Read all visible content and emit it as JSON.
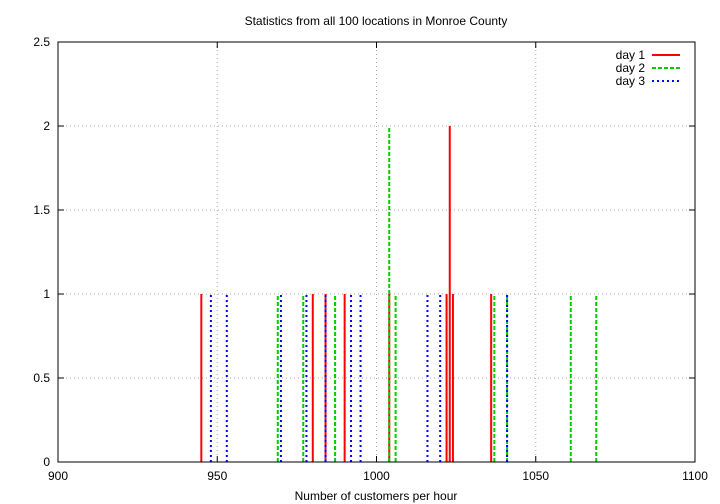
{
  "chart_data": {
    "type": "impulse",
    "title": "Statistics from all 100 locations in Monroe County",
    "xlabel": "Number of customers per hour",
    "ylabel": "",
    "xlim": [
      900,
      1100
    ],
    "ylim": [
      0,
      2.5
    ],
    "xticks": [
      900,
      950,
      1000,
      1050,
      1100
    ],
    "yticks": [
      0,
      0.5,
      1,
      1.5,
      2,
      2.5
    ],
    "grid": true,
    "legend_position": "top-right",
    "series": [
      {
        "name": "day 1",
        "color": "#ff0000",
        "style": "solid",
        "x": [
          945,
          980,
          984,
          990,
          1004,
          1022,
          1023,
          1024,
          1036
        ],
        "y": [
          1,
          1,
          1,
          1,
          1,
          1,
          2,
          1,
          1
        ]
      },
      {
        "name": "day 2",
        "color": "#00cc00",
        "style": "dashed",
        "x": [
          969,
          977,
          987,
          1004,
          1006,
          1037,
          1041,
          1061,
          1069
        ],
        "y": [
          1,
          1,
          1,
          2,
          1,
          1,
          1,
          1,
          1
        ]
      },
      {
        "name": "day 3",
        "color": "#0000ff",
        "style": "dotted",
        "x": [
          948,
          953,
          970,
          978,
          984,
          992,
          995,
          1016,
          1020,
          1041
        ],
        "y": [
          1,
          1,
          1,
          1,
          1,
          1,
          1,
          1,
          1,
          1
        ]
      }
    ]
  }
}
